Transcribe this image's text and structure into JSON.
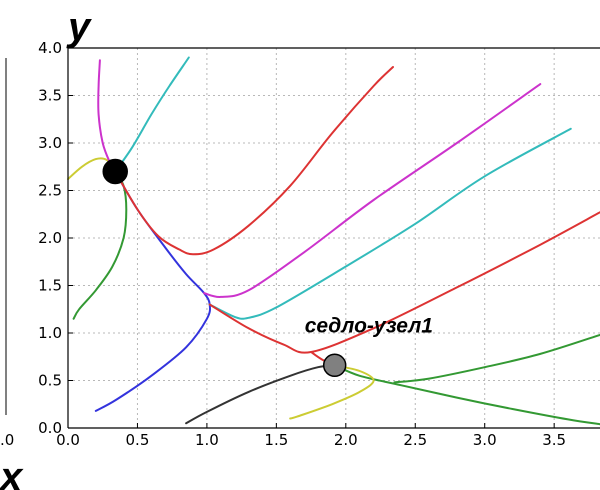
{
  "chart_data": {
    "type": "line",
    "xlabel": "x",
    "ylabel": "y",
    "xlim": [
      0.0,
      3.83
    ],
    "ylim": [
      0.0,
      4.0
    ],
    "x_ticks": [
      "0.0",
      "0.5",
      "1.0",
      "1.5",
      "2.0",
      "2.5",
      "3.0",
      "3.5"
    ],
    "y_ticks": [
      "0.0",
      "0.5",
      "1.0",
      "1.5",
      "2.0",
      "2.5",
      "3.0",
      "3.5",
      "4.0"
    ],
    "left_edge_tick": ".0",
    "grid": true,
    "series": [
      {
        "color": "#cccc33",
        "points": [
          [
            0.0,
            2.62
          ],
          [
            0.1,
            2.75
          ],
          [
            0.2,
            2.83
          ],
          [
            0.28,
            2.82
          ],
          [
            0.34,
            2.7
          ]
        ]
      },
      {
        "color": "#cc33cc",
        "points": [
          [
            0.23,
            3.87
          ],
          [
            0.22,
            3.6
          ],
          [
            0.22,
            3.3
          ],
          [
            0.25,
            3.0
          ],
          [
            0.3,
            2.8
          ],
          [
            0.34,
            2.7
          ]
        ]
      },
      {
        "color": "#33bbbb",
        "points": [
          [
            0.34,
            2.7
          ],
          [
            0.46,
            2.95
          ],
          [
            0.6,
            3.3
          ],
          [
            0.73,
            3.6
          ],
          [
            0.87,
            3.9
          ]
        ]
      },
      {
        "color": "#339933",
        "points": [
          [
            0.34,
            2.7
          ],
          [
            0.4,
            2.55
          ],
          [
            0.42,
            2.3
          ],
          [
            0.4,
            2.0
          ],
          [
            0.32,
            1.7
          ],
          [
            0.2,
            1.45
          ],
          [
            0.08,
            1.25
          ],
          [
            0.04,
            1.15
          ]
        ]
      },
      {
        "color": "#3333dd",
        "points": [
          [
            0.34,
            2.7
          ],
          [
            0.5,
            2.3
          ],
          [
            0.7,
            1.9
          ],
          [
            0.85,
            1.62
          ],
          [
            0.98,
            1.42
          ],
          [
            1.02,
            1.3
          ],
          [
            1.0,
            1.15
          ],
          [
            0.85,
            0.85
          ],
          [
            0.6,
            0.55
          ],
          [
            0.35,
            0.3
          ],
          [
            0.2,
            0.18
          ]
        ]
      },
      {
        "color": "#dd3333",
        "points": [
          [
            0.34,
            2.7
          ],
          [
            0.5,
            2.3
          ],
          [
            0.65,
            2.02
          ],
          [
            0.8,
            1.88
          ],
          [
            0.9,
            1.83
          ],
          [
            1.05,
            1.88
          ],
          [
            1.3,
            2.13
          ],
          [
            1.6,
            2.55
          ],
          [
            1.9,
            3.1
          ],
          [
            2.2,
            3.6
          ],
          [
            2.34,
            3.8
          ]
        ]
      },
      {
        "color": "#cc33cc",
        "points": [
          [
            0.98,
            1.42
          ],
          [
            1.1,
            1.38
          ],
          [
            1.3,
            1.45
          ],
          [
            1.7,
            1.85
          ],
          [
            2.2,
            2.4
          ],
          [
            2.8,
            3.0
          ],
          [
            3.4,
            3.62
          ]
        ]
      },
      {
        "color": "#33bbbb",
        "points": [
          [
            1.02,
            1.3
          ],
          [
            1.2,
            1.17
          ],
          [
            1.3,
            1.16
          ],
          [
            1.5,
            1.27
          ],
          [
            2.0,
            1.7
          ],
          [
            2.5,
            2.15
          ],
          [
            3.0,
            2.65
          ],
          [
            3.62,
            3.15
          ]
        ]
      },
      {
        "color": "#dd3333",
        "points": [
          [
            1.02,
            1.3
          ],
          [
            1.3,
            1.05
          ],
          [
            1.55,
            0.88
          ],
          [
            1.75,
            0.8
          ],
          [
            2.2,
            1.05
          ],
          [
            2.8,
            1.48
          ],
          [
            3.4,
            1.93
          ],
          [
            3.83,
            2.27
          ]
        ]
      },
      {
        "color": "#333333",
        "points": [
          [
            0.85,
            0.05
          ],
          [
            1.0,
            0.17
          ],
          [
            1.3,
            0.38
          ],
          [
            1.6,
            0.55
          ],
          [
            1.8,
            0.64
          ],
          [
            1.92,
            0.66
          ]
        ]
      },
      {
        "color": "#dd3333",
        "points": [
          [
            1.75,
            0.8
          ],
          [
            1.83,
            0.72
          ],
          [
            1.92,
            0.66
          ]
        ]
      },
      {
        "color": "#339933",
        "points": [
          [
            1.92,
            0.66
          ],
          [
            2.1,
            0.55
          ],
          [
            2.4,
            0.45
          ],
          [
            2.8,
            0.32
          ],
          [
            3.2,
            0.2
          ],
          [
            3.6,
            0.09
          ],
          [
            3.83,
            0.04
          ]
        ]
      },
      {
        "color": "#339933",
        "points": [
          [
            2.35,
            0.48
          ],
          [
            2.6,
            0.52
          ],
          [
            3.0,
            0.64
          ],
          [
            3.4,
            0.78
          ],
          [
            3.83,
            0.98
          ]
        ]
      },
      {
        "color": "#cccc33",
        "points": [
          [
            1.92,
            0.66
          ],
          [
            2.1,
            0.6
          ],
          [
            2.2,
            0.5
          ],
          [
            2.1,
            0.38
          ],
          [
            1.9,
            0.25
          ],
          [
            1.65,
            0.12
          ],
          [
            1.6,
            0.1
          ]
        ]
      }
    ],
    "points": [
      {
        "x": 0.34,
        "y": 2.7,
        "color": "#000000",
        "label": ""
      },
      {
        "x": 1.92,
        "y": 0.66,
        "color": "#808080",
        "label": "седло-узел1"
      }
    ]
  }
}
